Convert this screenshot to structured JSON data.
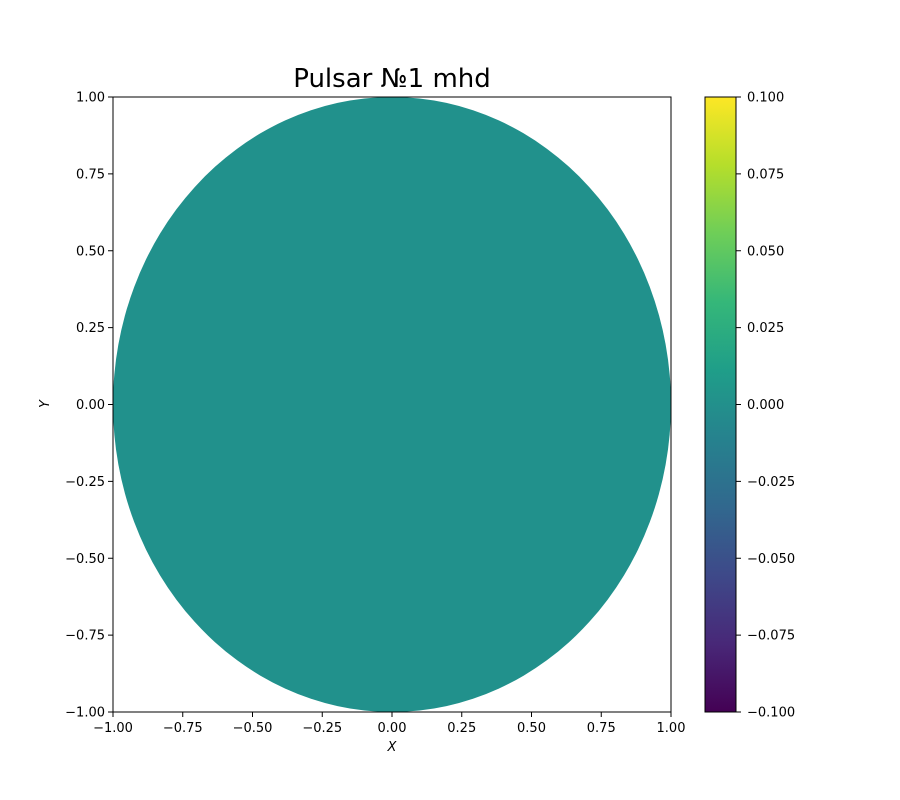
{
  "chart_data": {
    "type": "heatmap",
    "title": "Pulsar №1 mhd",
    "xlabel": "X",
    "ylabel": "Y",
    "xlim": [
      -1.0,
      1.0
    ],
    "ylim": [
      -1.0,
      1.0
    ],
    "x_ticks": [
      "−1.00",
      "−0.75",
      "−0.50",
      "−0.25",
      "0.00",
      "0.25",
      "0.50",
      "0.75",
      "1.00"
    ],
    "x_tick_values": [
      -1.0,
      -0.75,
      -0.5,
      -0.25,
      0.0,
      0.25,
      0.5,
      0.75,
      1.0
    ],
    "y_ticks": [
      "−1.00",
      "−0.75",
      "−0.50",
      "−0.25",
      "0.00",
      "0.25",
      "0.50",
      "0.75",
      "1.00"
    ],
    "y_tick_values": [
      -1.0,
      -0.75,
      -0.5,
      -0.25,
      0.0,
      0.25,
      0.5,
      0.75,
      1.0
    ],
    "field": {
      "shape": "disk",
      "center": [
        0.0,
        0.0
      ],
      "radius": 1.0,
      "value": 0.0,
      "color": "#21918c"
    },
    "colorbar": {
      "colormap": "viridis",
      "range": [
        -0.1,
        0.1
      ],
      "ticks": [
        "0.100",
        "0.075",
        "0.050",
        "0.025",
        "0.000",
        "−0.025",
        "−0.050",
        "−0.075",
        "−0.100"
      ],
      "tick_values": [
        0.1,
        0.075,
        0.05,
        0.025,
        0.0,
        -0.025,
        -0.05,
        -0.075,
        -0.1
      ],
      "colors": [
        "#440154",
        "#482878",
        "#3e4989",
        "#31688e",
        "#26828e",
        "#1f9e89",
        "#35b779",
        "#6ece58",
        "#b5de2b",
        "#fde725"
      ]
    },
    "grid": false
  }
}
